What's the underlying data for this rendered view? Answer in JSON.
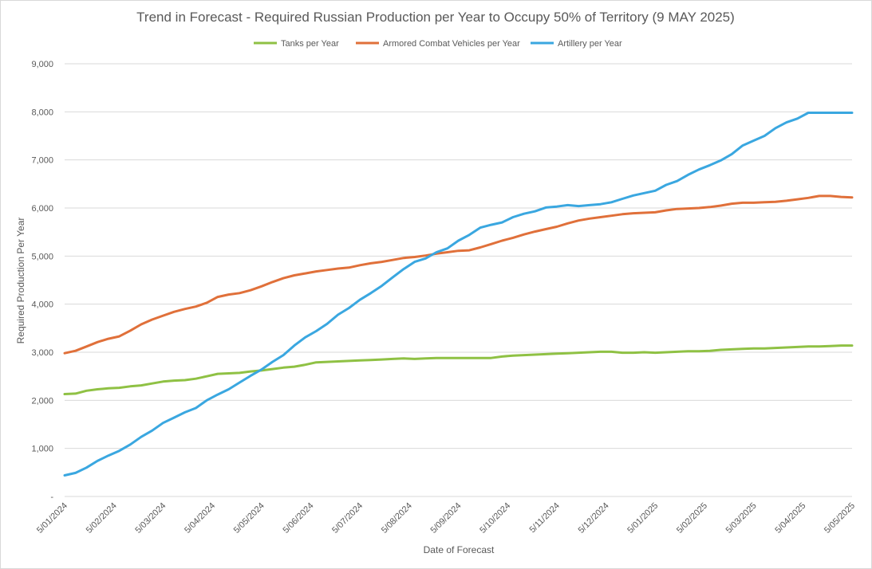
{
  "chart_data": {
    "type": "line",
    "title": "Trend in Forecast - Required Russian Production per Year to Occupy 50% of Territory (9 MAY 2025)",
    "xlabel": "Date of Forecast",
    "ylabel": "Required Production Per Year",
    "ylim": [
      0,
      9000
    ],
    "y_ticks": [
      "-",
      "1,000",
      "2,000",
      "3,000",
      "4,000",
      "5,000",
      "6,000",
      "7,000",
      "8,000",
      "9,000"
    ],
    "x_tick_labels": [
      "5/01/2024",
      "5/02/2024",
      "5/03/2024",
      "5/04/2024",
      "5/05/2024",
      "5/06/2024",
      "5/07/2024",
      "5/08/2024",
      "5/09/2024",
      "5/10/2024",
      "5/11/2024",
      "5/12/2024",
      "5/01/2025",
      "5/02/2025",
      "5/03/2025",
      "5/04/2025",
      "5/05/2025"
    ],
    "legend_position": "top",
    "grid": true,
    "series": [
      {
        "name": "Tanks per Year",
        "color": "#8fc144",
        "values": [
          2130,
          2140,
          2200,
          2230,
          2250,
          2260,
          2290,
          2310,
          2350,
          2390,
          2410,
          2420,
          2450,
          2500,
          2550,
          2560,
          2570,
          2600,
          2620,
          2650,
          2680,
          2700,
          2740,
          2790,
          2800,
          2810,
          2820,
          2830,
          2840,
          2850,
          2860,
          2870,
          2860,
          2870,
          2880,
          2880,
          2880,
          2880,
          2880,
          2880,
          2910,
          2930,
          2940,
          2950,
          2960,
          2970,
          2980,
          2990,
          3000,
          3010,
          3010,
          2990,
          2990,
          3000,
          2990,
          3000,
          3010,
          3020,
          3020,
          3030,
          3050,
          3060,
          3070,
          3080,
          3080,
          3090,
          3100,
          3110,
          3120,
          3120,
          3130,
          3140,
          3140
        ]
      },
      {
        "name": "Armored Combat Vehicles per Year",
        "color": "#e0703a",
        "values": [
          2980,
          3030,
          3120,
          3210,
          3280,
          3330,
          3450,
          3580,
          3680,
          3760,
          3840,
          3900,
          3950,
          4030,
          4150,
          4200,
          4230,
          4290,
          4370,
          4460,
          4540,
          4600,
          4640,
          4680,
          4710,
          4740,
          4760,
          4810,
          4850,
          4880,
          4920,
          4960,
          4980,
          5010,
          5050,
          5080,
          5110,
          5120,
          5180,
          5250,
          5320,
          5380,
          5450,
          5510,
          5560,
          5610,
          5680,
          5740,
          5780,
          5810,
          5840,
          5870,
          5890,
          5900,
          5910,
          5950,
          5980,
          5990,
          6000,
          6020,
          6050,
          6090,
          6110,
          6110,
          6120,
          6130,
          6150,
          6180,
          6210,
          6250,
          6250,
          6230,
          6220
        ]
      },
      {
        "name": "Artillery per Year",
        "color": "#3aa7e0",
        "values": [
          440,
          490,
          600,
          740,
          850,
          950,
          1080,
          1240,
          1370,
          1530,
          1640,
          1750,
          1840,
          2000,
          2120,
          2230,
          2370,
          2510,
          2640,
          2800,
          2940,
          3140,
          3310,
          3440,
          3590,
          3780,
          3920,
          4090,
          4230,
          4380,
          4560,
          4730,
          4880,
          4950,
          5080,
          5160,
          5320,
          5440,
          5590,
          5650,
          5700,
          5810,
          5880,
          5930,
          6010,
          6030,
          6060,
          6040,
          6060,
          6080,
          6120,
          6190,
          6260,
          6310,
          6360,
          6480,
          6560,
          6690,
          6800,
          6890,
          6990,
          7120,
          7300,
          7400,
          7500,
          7660,
          7780,
          7860,
          7980,
          7980,
          7980,
          7980,
          7980
        ]
      }
    ]
  }
}
